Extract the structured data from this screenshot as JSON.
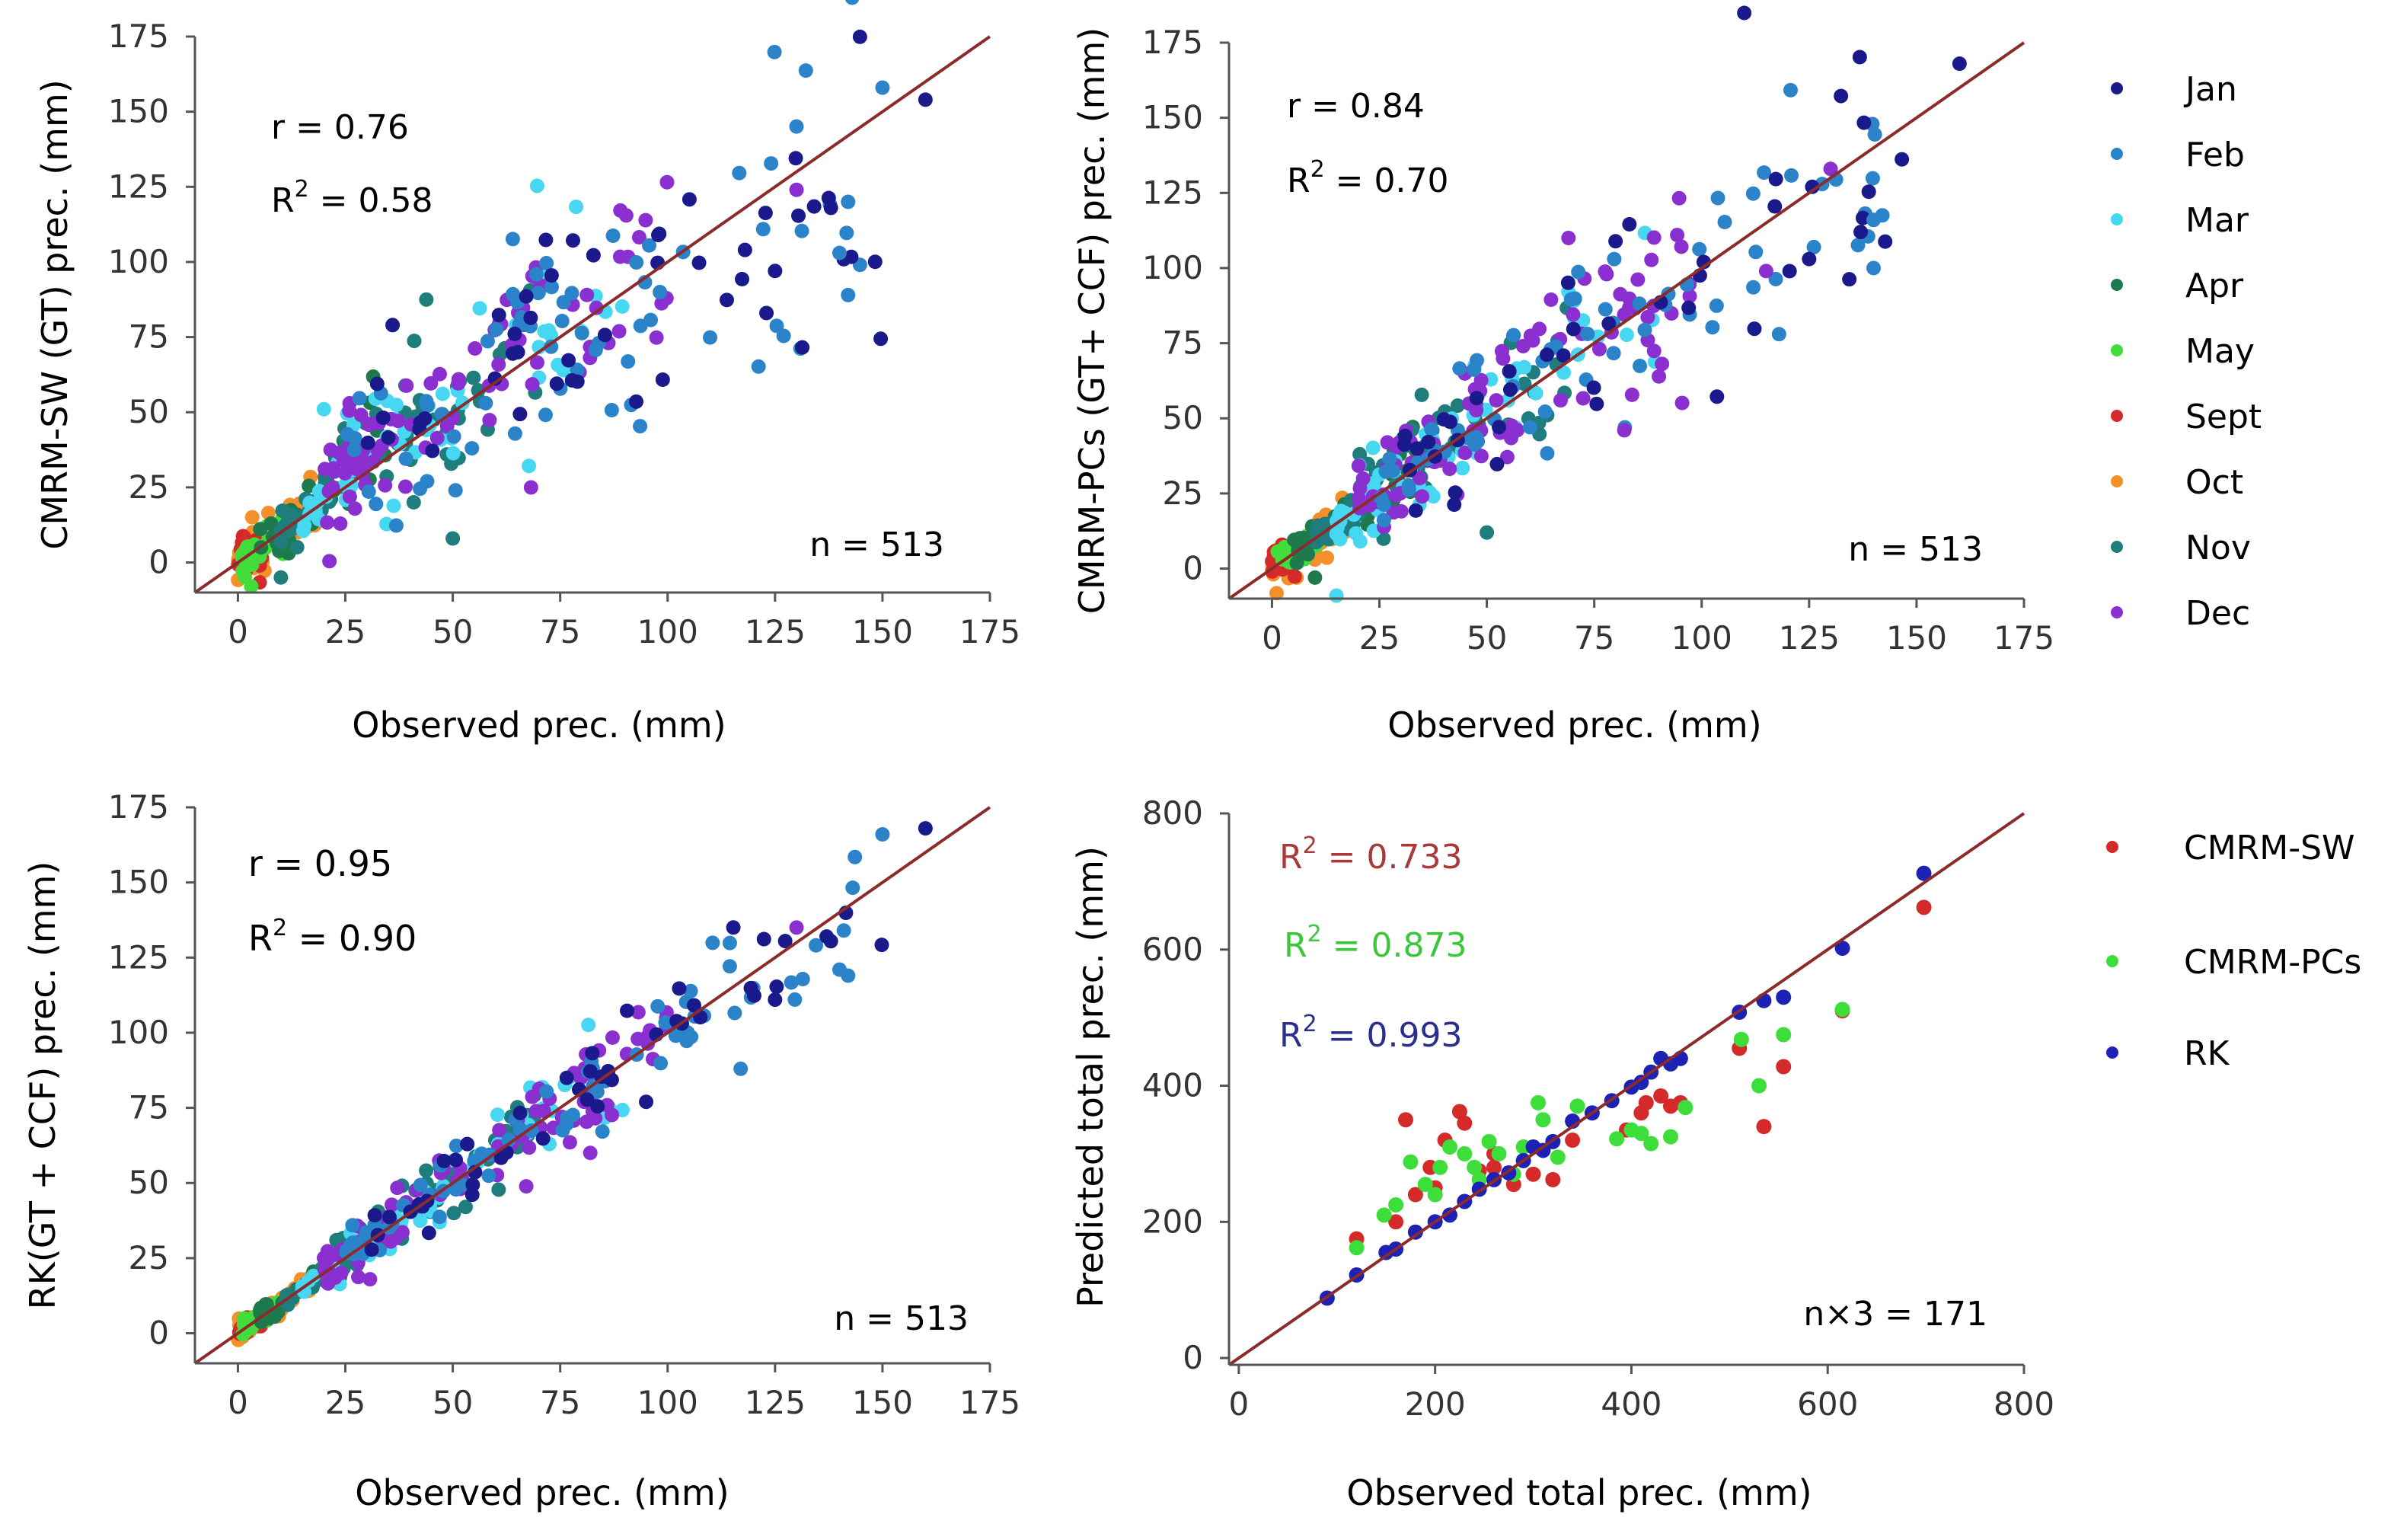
{
  "colors": {
    "month": {
      "Jan": "#1a1a8c",
      "Feb": "#2b83c9",
      "Mar": "#48d7f0",
      "Apr": "#1e7a4c",
      "May": "#42dd3c",
      "Sept": "#d42a2a",
      "Oct": "#f3902a",
      "Nov": "#1f7d7d",
      "Dec": "#8a2fd0"
    },
    "model": {
      "CMRM-SW": "#d42a2a",
      "CMRM-PCs": "#3ddd3a",
      "RK": "#1e22b4"
    },
    "one_to_one_line": "#8c2b2b",
    "axis": "#555555"
  },
  "chart_data": [
    {
      "type": "scatter",
      "ylabel": "CMRM-SW (GT) prec. (mm)",
      "xlabel": "Observed prec. (mm)",
      "ticks": [
        0,
        25,
        50,
        75,
        100,
        125,
        150,
        175
      ],
      "xlim": [
        -10,
        175
      ],
      "ylim": [
        -10,
        175
      ],
      "annotations": {
        "r": "r = 0.76",
        "r2_prefix": "R",
        "r2_sup": "2",
        "r2_value": " = 0.58",
        "n": "n = 513"
      },
      "highlight_points": [
        {
          "x": 150,
          "y": 158,
          "series": "Feb"
        },
        {
          "x": 160,
          "y": 154,
          "series": "Jan"
        },
        {
          "x": 130,
          "y": 124,
          "series": "Dec"
        },
        {
          "x": 138,
          "y": 118,
          "series": "Jan"
        },
        {
          "x": 142,
          "y": 120,
          "series": "Feb"
        },
        {
          "x": 140,
          "y": 103,
          "series": "Feb"
        },
        {
          "x": 142,
          "y": 89,
          "series": "Feb"
        },
        {
          "x": 125,
          "y": 97,
          "series": "Jan"
        },
        {
          "x": 123,
          "y": 83,
          "series": "Jan"
        },
        {
          "x": 118,
          "y": 104,
          "series": "Jan"
        },
        {
          "x": 50,
          "y": 8,
          "series": "Nov"
        },
        {
          "x": 10,
          "y": -5,
          "series": "Nov"
        },
        {
          "x": 36,
          "y": 79,
          "series": "Jan"
        },
        {
          "x": 20,
          "y": 51,
          "series": "Mar"
        }
      ]
    },
    {
      "type": "scatter",
      "ylabel": "CMRM-PCs (GT+ CCF) prec. (mm)",
      "xlabel": "Observed prec. (mm)",
      "ticks": [
        0,
        25,
        50,
        75,
        100,
        125,
        150,
        175
      ],
      "xlim": [
        -10,
        175
      ],
      "ylim": [
        -10,
        175
      ],
      "annotations": {
        "r": "r = 0.84",
        "r2_prefix": "R",
        "r2_sup": "2",
        "r2_value": " = 0.70",
        "n": "n = 513"
      },
      "highlight_points": [
        {
          "x": 160,
          "y": 168,
          "series": "Jan"
        },
        {
          "x": 130,
          "y": 133,
          "series": "Dec"
        },
        {
          "x": 140,
          "y": 116,
          "series": "Feb"
        },
        {
          "x": 137,
          "y": 112,
          "series": "Jan"
        },
        {
          "x": 140,
          "y": 100,
          "series": "Feb"
        },
        {
          "x": 118,
          "y": 78,
          "series": "Feb"
        },
        {
          "x": 115,
          "y": 99,
          "series": "Dec"
        },
        {
          "x": 125,
          "y": 103,
          "series": "Jan"
        },
        {
          "x": 50,
          "y": 12,
          "series": "Nov"
        },
        {
          "x": 15,
          "y": -9,
          "series": "Mar"
        },
        {
          "x": 10,
          "y": -3,
          "series": "Apr"
        },
        {
          "x": 82,
          "y": 46,
          "series": "Dec"
        }
      ]
    },
    {
      "type": "scatter",
      "ylabel": "RK(GT + CCF) prec. (mm)",
      "xlabel": "Observed prec. (mm)",
      "ticks": [
        0,
        25,
        50,
        75,
        100,
        125,
        150,
        175
      ],
      "xlim": [
        -10,
        175
      ],
      "ylim": [
        -10,
        175
      ],
      "annotations": {
        "r": "r = 0.95",
        "r2_prefix": "R",
        "r2_sup": "2",
        "r2_value": " = 0.90",
        "n": "n = 513"
      },
      "highlight_points": [
        {
          "x": 150,
          "y": 166,
          "series": "Feb"
        },
        {
          "x": 160,
          "y": 168,
          "series": "Jan"
        },
        {
          "x": 130,
          "y": 135,
          "series": "Dec"
        },
        {
          "x": 137,
          "y": 132,
          "series": "Jan"
        },
        {
          "x": 141,
          "y": 134,
          "series": "Feb"
        },
        {
          "x": 140,
          "y": 121,
          "series": "Feb"
        },
        {
          "x": 142,
          "y": 119,
          "series": "Feb"
        },
        {
          "x": 125,
          "y": 111,
          "series": "Jan"
        },
        {
          "x": 117,
          "y": 88,
          "series": "Feb"
        },
        {
          "x": 82,
          "y": 60,
          "series": "Dec"
        },
        {
          "x": 95,
          "y": 77,
          "series": "Jan"
        }
      ]
    },
    {
      "type": "scatter",
      "ylabel": "Predicted total prec. (mm)",
      "xlabel": "Observed total prec. (mm)",
      "ticks": [
        0,
        200,
        400,
        600,
        800
      ],
      "xlim": [
        -10,
        800
      ],
      "ylim": [
        -10,
        800
      ],
      "annotations": {
        "r2_lines": [
          {
            "series": "CMRM-SW",
            "prefix": "R",
            "sup": "2",
            "value": " = 0.733"
          },
          {
            "series": "CMRM-PCs",
            "prefix": "R",
            "sup": "2",
            "value": " = 0.873"
          },
          {
            "series": "RK",
            "prefix": "R",
            "sup": "2",
            "value": " = 0.993"
          }
        ],
        "n": "n×3 = 171"
      },
      "series": [
        {
          "name": "CMRM-SW",
          "values": [
            [
              120,
              175
            ],
            [
              170,
              350
            ],
            [
              195,
              280
            ],
            [
              200,
              250
            ],
            [
              210,
              320
            ],
            [
              225,
              362
            ],
            [
              230,
              345
            ],
            [
              245,
              275
            ],
            [
              260,
              280
            ],
            [
              280,
              255
            ],
            [
              300,
              270
            ],
            [
              320,
              262
            ],
            [
              340,
              320
            ],
            [
              395,
              335
            ],
            [
              410,
              360
            ],
            [
              415,
              375
            ],
            [
              430,
              385
            ],
            [
              440,
              370
            ],
            [
              450,
              375
            ],
            [
              510,
              455
            ],
            [
              535,
              340
            ],
            [
              555,
              428
            ],
            [
              615,
              510
            ],
            [
              698,
              662
            ],
            [
              160,
              200
            ],
            [
              180,
              240
            ],
            [
              260,
              300
            ]
          ]
        },
        {
          "name": "CMRM-PCs",
          "values": [
            [
              120,
              162
            ],
            [
              148,
              210
            ],
            [
              160,
              225
            ],
            [
              175,
              288
            ],
            [
              190,
              255
            ],
            [
              205,
              280
            ],
            [
              215,
              310
            ],
            [
              230,
              300
            ],
            [
              245,
              262
            ],
            [
              255,
              318
            ],
            [
              265,
              300
            ],
            [
              280,
              270
            ],
            [
              305,
              375
            ],
            [
              310,
              350
            ],
            [
              325,
              295
            ],
            [
              345,
              370
            ],
            [
              385,
              322
            ],
            [
              400,
              335
            ],
            [
              410,
              330
            ],
            [
              420,
              315
            ],
            [
              440,
              325
            ],
            [
              455,
              368
            ],
            [
              512,
              468
            ],
            [
              530,
              400
            ],
            [
              555,
              475
            ],
            [
              615,
              512
            ],
            [
              200,
              240
            ],
            [
              240,
              280
            ],
            [
              290,
              310
            ]
          ]
        },
        {
          "name": "RK",
          "values": [
            [
              90,
              88
            ],
            [
              120,
              122
            ],
            [
              150,
              155
            ],
            [
              160,
              160
            ],
            [
              180,
              185
            ],
            [
              200,
              200
            ],
            [
              215,
              210
            ],
            [
              230,
              230
            ],
            [
              245,
              248
            ],
            [
              260,
              262
            ],
            [
              275,
              272
            ],
            [
              290,
              290
            ],
            [
              300,
              310
            ],
            [
              310,
              305
            ],
            [
              320,
              318
            ],
            [
              340,
              348
            ],
            [
              360,
              360
            ],
            [
              380,
              378
            ],
            [
              400,
              398
            ],
            [
              410,
              405
            ],
            [
              420,
              420
            ],
            [
              430,
              440
            ],
            [
              440,
              432
            ],
            [
              450,
              440
            ],
            [
              510,
              508
            ],
            [
              535,
              525
            ],
            [
              555,
              530
            ],
            [
              615,
              602
            ],
            [
              698,
              712
            ]
          ]
        }
      ]
    }
  ],
  "legend_months": [
    "Jan",
    "Feb",
    "Mar",
    "Apr",
    "May",
    "Sept",
    "Oct",
    "Nov",
    "Dec"
  ],
  "legend_models": [
    "CMRM-SW",
    "CMRM-PCs",
    "RK"
  ]
}
